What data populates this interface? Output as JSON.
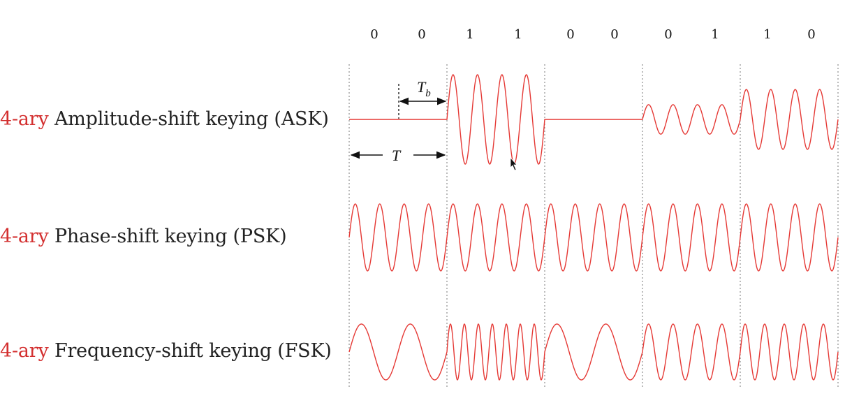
{
  "bits": [
    "0",
    "0",
    "1",
    "1",
    "0",
    "0",
    "0",
    "1",
    "1",
    "0"
  ],
  "rows": [
    {
      "id": "ask",
      "prefix": "4-ary",
      "label": " Amplitude-shift keying (ASK)"
    },
    {
      "id": "psk",
      "prefix": "4-ary",
      "label": " Phase-shift keying (PSK)"
    },
    {
      "id": "fsk",
      "prefix": "4-ary",
      "label": " Frequency-shift keying (FSK)"
    }
  ],
  "annotations": {
    "tb": "T",
    "tb_sub": "b",
    "t": "T"
  },
  "colors": {
    "wave": "#e53935",
    "label_prefix": "#d32f2f",
    "text": "#222222",
    "guide": "#777777"
  },
  "symbols": [
    {
      "pair": "00",
      "ask_amplitude": 0,
      "psk_phase_deg": 0,
      "fsk_cycles": 2
    },
    {
      "pair": "11",
      "ask_amplitude": 1,
      "psk_phase_deg": 0,
      "fsk_cycles": 7
    },
    {
      "pair": "00",
      "ask_amplitude": 0,
      "psk_phase_deg": 0,
      "fsk_cycles": 2
    },
    {
      "pair": "01",
      "ask_amplitude": 0.33,
      "psk_phase_deg": 0,
      "fsk_cycles": 4
    },
    {
      "pair": "10",
      "ask_amplitude": 0.67,
      "psk_phase_deg": 0,
      "fsk_cycles": 5
    }
  ],
  "psk_cycles_per_symbol": 4,
  "ask_cycles_per_symbol": 4
}
